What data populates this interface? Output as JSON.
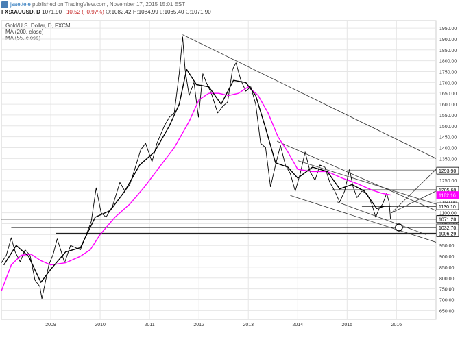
{
  "header": {
    "publisher": "jsaettele",
    "published_text": "published on TradingView.com, November 17, 2015 15:01 EST",
    "symbol_line": {
      "symbol": "FX:XAUUSD, D",
      "last": "1071.90",
      "change": "−10.52 (−0.97%)",
      "o_label": "O:",
      "o": "1082.42",
      "h_label": "H:",
      "h": "1084.99",
      "l_label": "L:",
      "l": "1065.40",
      "c_label": "C:",
      "c": "1071.90"
    }
  },
  "legend": {
    "title": "Gold/U.S. Dollar, D, FXCM",
    "ma200": "MA (200, close)",
    "ma55": "MA (55, close)"
  },
  "colors": {
    "price": "#000000",
    "ma200": "#ff00ff",
    "ma55": "#000000",
    "grid": "#e6e6e6",
    "text": "#333333"
  },
  "chart_data": {
    "type": "line",
    "y_ticks": [
      650,
      700,
      750,
      800,
      850,
      900,
      950,
      1000,
      1050,
      1100,
      1150,
      1200,
      1250,
      1300,
      1350,
      1400,
      1450,
      1500,
      1550,
      1600,
      1650,
      1700,
      1750,
      1800,
      1850,
      1900,
      1950
    ],
    "y_tick_labels": [
      "650.00",
      "700.00",
      "750.00",
      "800.00",
      "850.00",
      "900.00",
      "950.00",
      "1000.00",
      "1050.00",
      "1100.00",
      "1150.00",
      "1200.00",
      "1250.00",
      "1300.00",
      "1350.00",
      "1400.00",
      "1450.00",
      "1500.00",
      "1550.00",
      "1600.00",
      "1650.00",
      "1700.00",
      "1750.00",
      "1800.00",
      "1850.00",
      "1900.00",
      "1950.00"
    ],
    "x_ticks": [
      2009,
      2010,
      2011,
      2012,
      2013,
      2014,
      2015,
      2016
    ],
    "x_tick_labels": [
      "2009",
      "2010",
      "2011",
      "2012",
      "2013",
      "2014",
      "2015",
      "2016"
    ],
    "ylim": [
      610,
      1985
    ],
    "xlim": [
      2008.0,
      2016.8
    ],
    "grid": true,
    "price_labels": [
      {
        "value": 1293.9,
        "label": "1293.90",
        "style": "outline"
      },
      {
        "value": 1205.68,
        "label": "1205.68",
        "style": "outline"
      },
      {
        "value": 1182.16,
        "label": "1182.16",
        "style": "magenta"
      },
      {
        "value": 1130.1,
        "label": "1130.10",
        "style": "outline"
      },
      {
        "value": 1071.9,
        "label": "1071.90",
        "style": "black"
      },
      {
        "value": 1071.28,
        "label": "1071.28",
        "style": "outline"
      },
      {
        "value": 1032.7,
        "label": "1032.70",
        "style": "outline"
      },
      {
        "value": 1006.29,
        "label": "1006.29",
        "style": "outline"
      }
    ],
    "series": [
      {
        "name": "Gold/U.S. Dollar",
        "points": [
          [
            2008.0,
            870
          ],
          [
            2008.1,
            905
          ],
          [
            2008.2,
            985
          ],
          [
            2008.28,
            920
          ],
          [
            2008.38,
            875
          ],
          [
            2008.48,
            930
          ],
          [
            2008.58,
            905
          ],
          [
            2008.68,
            790
          ],
          [
            2008.78,
            760
          ],
          [
            2008.82,
            705
          ],
          [
            2008.88,
            770
          ],
          [
            2008.96,
            860
          ],
          [
            2009.05,
            910
          ],
          [
            2009.13,
            980
          ],
          [
            2009.2,
            930
          ],
          [
            2009.28,
            870
          ],
          [
            2009.4,
            950
          ],
          [
            2009.5,
            940
          ],
          [
            2009.6,
            930
          ],
          [
            2009.72,
            1000
          ],
          [
            2009.82,
            1060
          ],
          [
            2009.92,
            1215
          ],
          [
            2010.02,
            1100
          ],
          [
            2010.12,
            1080
          ],
          [
            2010.25,
            1130
          ],
          [
            2010.4,
            1240
          ],
          [
            2010.5,
            1200
          ],
          [
            2010.6,
            1230
          ],
          [
            2010.7,
            1300
          ],
          [
            2010.82,
            1390
          ],
          [
            2010.92,
            1420
          ],
          [
            2011.05,
            1335
          ],
          [
            2011.15,
            1420
          ],
          [
            2011.3,
            1500
          ],
          [
            2011.4,
            1540
          ],
          [
            2011.5,
            1560
          ],
          [
            2011.6,
            1740
          ],
          [
            2011.67,
            1910
          ],
          [
            2011.72,
            1760
          ],
          [
            2011.8,
            1640
          ],
          [
            2011.9,
            1700
          ],
          [
            2011.99,
            1540
          ],
          [
            2012.08,
            1740
          ],
          [
            2012.15,
            1700
          ],
          [
            2012.25,
            1650
          ],
          [
            2012.38,
            1560
          ],
          [
            2012.48,
            1590
          ],
          [
            2012.58,
            1610
          ],
          [
            2012.68,
            1760
          ],
          [
            2012.75,
            1790
          ],
          [
            2012.85,
            1710
          ],
          [
            2012.95,
            1660
          ],
          [
            2013.05,
            1680
          ],
          [
            2013.15,
            1600
          ],
          [
            2013.25,
            1420
          ],
          [
            2013.35,
            1400
          ],
          [
            2013.45,
            1220
          ],
          [
            2013.55,
            1320
          ],
          [
            2013.65,
            1410
          ],
          [
            2013.75,
            1320
          ],
          [
            2013.85,
            1280
          ],
          [
            2013.95,
            1200
          ],
          [
            2014.05,
            1280
          ],
          [
            2014.15,
            1380
          ],
          [
            2014.25,
            1290
          ],
          [
            2014.35,
            1250
          ],
          [
            2014.45,
            1320
          ],
          [
            2014.55,
            1310
          ],
          [
            2014.65,
            1240
          ],
          [
            2014.75,
            1200
          ],
          [
            2014.85,
            1150
          ],
          [
            2014.95,
            1200
          ],
          [
            2015.05,
            1300
          ],
          [
            2015.12,
            1220
          ],
          [
            2015.2,
            1170
          ],
          [
            2015.3,
            1200
          ],
          [
            2015.4,
            1190
          ],
          [
            2015.5,
            1140
          ],
          [
            2015.58,
            1080
          ],
          [
            2015.65,
            1120
          ],
          [
            2015.72,
            1140
          ],
          [
            2015.8,
            1190
          ],
          [
            2015.85,
            1150
          ],
          [
            2015.88,
            1071.9
          ]
        ]
      },
      {
        "name": "MA (200, close)",
        "points": [
          [
            2008.0,
            740
          ],
          [
            2008.2,
            860
          ],
          [
            2008.4,
            905
          ],
          [
            2008.6,
            910
          ],
          [
            2008.8,
            880
          ],
          [
            2009.0,
            860
          ],
          [
            2009.3,
            870
          ],
          [
            2009.6,
            900
          ],
          [
            2009.8,
            930
          ],
          [
            2010.0,
            1000
          ],
          [
            2010.3,
            1080
          ],
          [
            2010.6,
            1140
          ],
          [
            2010.9,
            1220
          ],
          [
            2011.2,
            1310
          ],
          [
            2011.5,
            1400
          ],
          [
            2011.8,
            1520
          ],
          [
            2012.0,
            1620
          ],
          [
            2012.2,
            1650
          ],
          [
            2012.4,
            1650
          ],
          [
            2012.6,
            1640
          ],
          [
            2012.8,
            1650
          ],
          [
            2013.0,
            1680
          ],
          [
            2013.2,
            1640
          ],
          [
            2013.4,
            1560
          ],
          [
            2013.6,
            1450
          ],
          [
            2013.8,
            1380
          ],
          [
            2014.0,
            1300
          ],
          [
            2014.3,
            1290
          ],
          [
            2014.6,
            1290
          ],
          [
            2014.9,
            1260
          ],
          [
            2015.2,
            1235
          ],
          [
            2015.5,
            1205
          ],
          [
            2015.7,
            1190
          ],
          [
            2015.88,
            1182.16
          ]
        ]
      },
      {
        "name": "MA (55, close)",
        "points": [
          [
            2008.05,
            860
          ],
          [
            2008.3,
            950
          ],
          [
            2008.55,
            900
          ],
          [
            2008.8,
            780
          ],
          [
            2009.0,
            840
          ],
          [
            2009.3,
            920
          ],
          [
            2009.6,
            940
          ],
          [
            2009.9,
            1080
          ],
          [
            2010.2,
            1110
          ],
          [
            2010.5,
            1200
          ],
          [
            2010.8,
            1320
          ],
          [
            2011.1,
            1380
          ],
          [
            2011.4,
            1500
          ],
          [
            2011.6,
            1600
          ],
          [
            2011.75,
            1760
          ],
          [
            2011.95,
            1690
          ],
          [
            2012.2,
            1680
          ],
          [
            2012.45,
            1600
          ],
          [
            2012.7,
            1710
          ],
          [
            2012.95,
            1700
          ],
          [
            2013.15,
            1640
          ],
          [
            2013.35,
            1490
          ],
          [
            2013.55,
            1330
          ],
          [
            2013.8,
            1310
          ],
          [
            2014.0,
            1260
          ],
          [
            2014.3,
            1310
          ],
          [
            2014.6,
            1290
          ],
          [
            2014.85,
            1210
          ],
          [
            2015.1,
            1230
          ],
          [
            2015.35,
            1200
          ],
          [
            2015.6,
            1120
          ],
          [
            2015.75,
            1130
          ],
          [
            2015.88,
            1130.1
          ]
        ]
      }
    ],
    "trendlines": [
      {
        "name": "long-term-resistance",
        "x1": 2011.67,
        "y1": 1920,
        "x2": 2016.8,
        "y2": 1350
      },
      {
        "name": "channel-upper",
        "x1": 2013.58,
        "y1": 1430,
        "x2": 2016.8,
        "y2": 1110
      },
      {
        "name": "channel-lower",
        "x1": 2013.85,
        "y1": 1180,
        "x2": 2016.8,
        "y2": 965
      },
      {
        "name": "inner-upper",
        "x1": 2014.0,
        "y1": 1340,
        "x2": 2016.8,
        "y2": 1140
      },
      {
        "name": "inner-lower",
        "x1": 2014.8,
        "y1": 1150,
        "x2": 2016.6,
        "y2": 1000
      },
      {
        "name": "fan-1",
        "x1": 2015.9,
        "y1": 1100,
        "x2": 2016.8,
        "y2": 1300
      },
      {
        "name": "fan-2",
        "x1": 2015.9,
        "y1": 1100,
        "x2": 2016.8,
        "y2": 1200
      }
    ],
    "horizontal_levels": [
      {
        "value": 1293.9,
        "x1": 2015.0,
        "x2": 2016.8
      },
      {
        "value": 1205.68,
        "x1": 2014.7,
        "x2": 2016.8
      },
      {
        "value": 1130.1,
        "x1": 2015.3,
        "x2": 2016.8
      },
      {
        "value": 1071.28,
        "x1": 2008.0,
        "x2": 2016.8
      },
      {
        "value": 1032.7,
        "x1": 2008.2,
        "x2": 2016.8
      },
      {
        "value": 1006.29,
        "x1": 2009.1,
        "x2": 2016.8
      }
    ],
    "marker": {
      "x": 2016.05,
      "y": 1032.7
    }
  }
}
